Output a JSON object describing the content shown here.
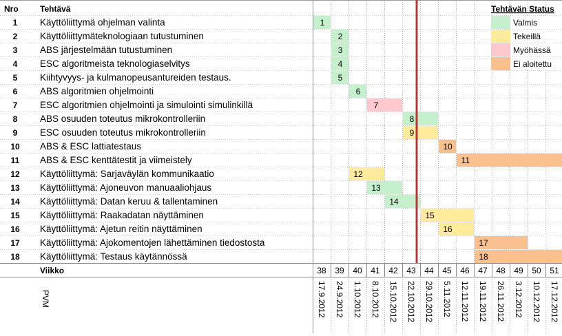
{
  "chart_data": {
    "type": "gantt",
    "headers": {
      "number": "Nro",
      "task": "Tehtävä",
      "week": "Viikko",
      "date": "PVM"
    },
    "legend_title": "Tehtävän Status",
    "statuses": [
      {
        "key": "valmis",
        "label": "Valmis",
        "color": "#c6efce"
      },
      {
        "key": "tekeilla",
        "label": "Tekeillä",
        "color": "#ffeb9c"
      },
      {
        "key": "myohassa",
        "label": "Myöhässä",
        "color": "#ffc7ce"
      },
      {
        "key": "ei",
        "label": "Ei aloitettu",
        "color": "#fac090"
      }
    ],
    "weeks": [
      38,
      39,
      40,
      41,
      42,
      43,
      44,
      45,
      46,
      47,
      48,
      49,
      50,
      51
    ],
    "dates": [
      "17.9.2012",
      "24.9.2012",
      "1.10.2012",
      "8.10.2012",
      "15.10.2012",
      "22.10.2012",
      "29.10.2012",
      "5.11.2012",
      "12.11.2012",
      "19.11.2012",
      "26.11.2012",
      "3.12.2012",
      "10.12.2012",
      "17.12.2012"
    ],
    "current_week": 44,
    "tasks": [
      {
        "nro": "1",
        "name": "Käyttöliittymä ohjelman valinta",
        "start": 38,
        "end": 38,
        "status": "valmis",
        "label": "1"
      },
      {
        "nro": "2",
        "name": "Käyttöliittymäteknologiaan tutustuminen",
        "start": 39,
        "end": 39,
        "status": "valmis",
        "label": "2"
      },
      {
        "nro": "3",
        "name": "ABS järjestelmään tutustuminen",
        "start": 39,
        "end": 39,
        "status": "valmis",
        "label": "3"
      },
      {
        "nro": "4",
        "name": "ESC algoritmeista teknologiaselvitys",
        "start": 39,
        "end": 39,
        "status": "valmis",
        "label": "4"
      },
      {
        "nro": "5",
        "name": "Kiihtyvyys- ja kulmanopeusantureiden testaus.",
        "start": 39,
        "end": 39,
        "status": "valmis",
        "label": "5"
      },
      {
        "nro": "6",
        "name": "ABS algoritmien ohjelmointi",
        "start": 40,
        "end": 40,
        "status": "valmis",
        "label": "6"
      },
      {
        "nro": "7",
        "name": "ESC algoritmien ohjelmointi ja simulointi simulinkillä",
        "start": 41,
        "end": 42,
        "status": "myohassa",
        "label": "7"
      },
      {
        "nro": "8",
        "name": "ABS osuuden toteutus mikrokontrolleriin",
        "start": 43,
        "end": 44,
        "status": "valmis",
        "label": "8"
      },
      {
        "nro": "9",
        "name": "ESC osuuden toteutus mikrokontrolleriin",
        "start": 43,
        "end": 44,
        "status": "tekeilla",
        "label": "9"
      },
      {
        "nro": "10",
        "name": "ABS & ESC lattiatestaus",
        "start": 45,
        "end": 45,
        "status": "ei",
        "label": "10"
      },
      {
        "nro": "11",
        "name": "ABS & ESC kenttätestit ja viimeistely",
        "start": 46,
        "end": 51,
        "status": "ei",
        "label": "11"
      },
      {
        "nro": "12",
        "name": "Käyttöliittymä: Sarjaväylän kommunikaatio",
        "start": 40,
        "end": 41,
        "status": "tekeilla",
        "label": "12"
      },
      {
        "nro": "13",
        "name": "Käyttöliittymä: Ajoneuvon manuaaliohjaus",
        "start": 41,
        "end": 42,
        "status": "valmis",
        "label": "13"
      },
      {
        "nro": "14",
        "name": "Käyttöliittymä: Datan keruu & tallentaminen",
        "start": 42,
        "end": 43,
        "status": "valmis",
        "label": "14"
      },
      {
        "nro": "15",
        "name": "Käyttöliittymä: Raakadatan näyttäminen",
        "start": 44,
        "end": 46,
        "status": "tekeilla",
        "label": "15"
      },
      {
        "nro": "16",
        "name": "Käyttöliittymä: Ajetun reitin näyttäminen",
        "start": 45,
        "end": 46,
        "status": "tekeilla",
        "label": "16"
      },
      {
        "nro": "17",
        "name": "Käyttöliittymä: Ajokomentojen lähettäminen tiedostosta",
        "start": 47,
        "end": 49,
        "status": "ei",
        "label": "17"
      },
      {
        "nro": "18",
        "name": "Käyttöliittymä: Testaus käytännössä",
        "start": 47,
        "end": 51,
        "status": "ei",
        "label": "18"
      }
    ]
  }
}
